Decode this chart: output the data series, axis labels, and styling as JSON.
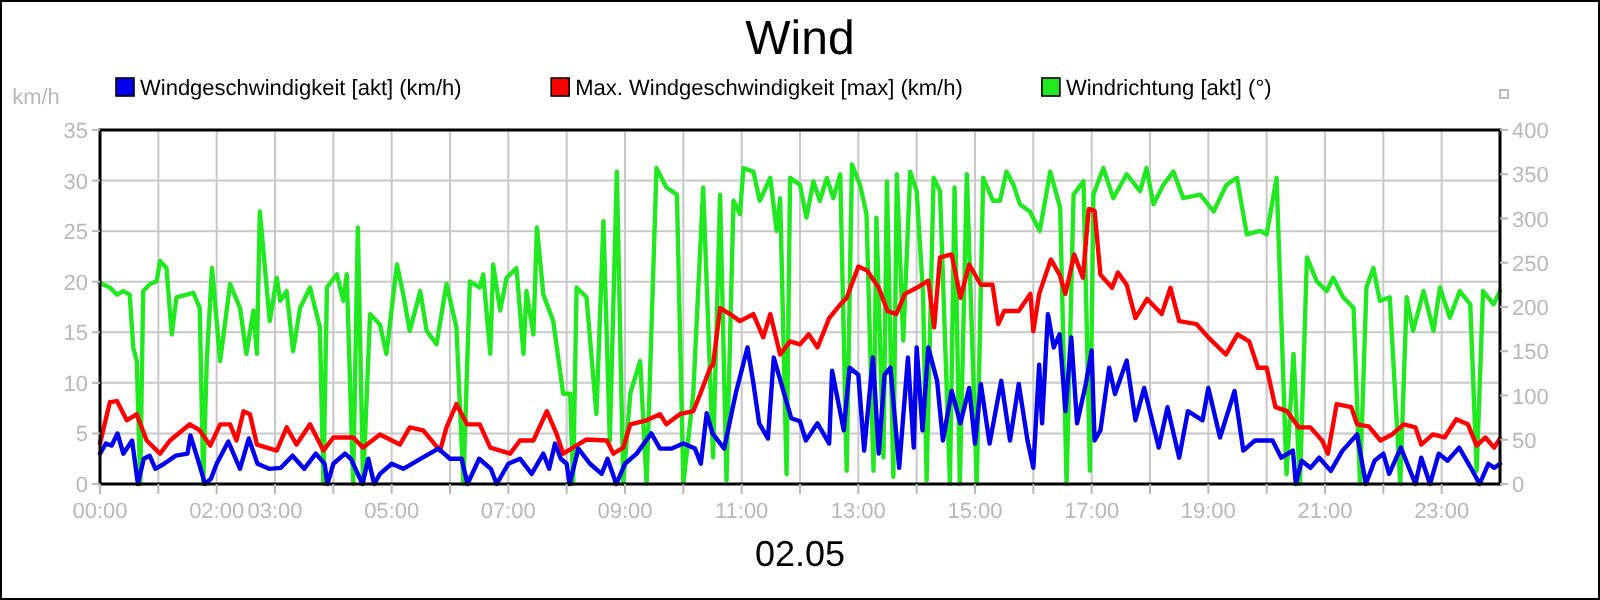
{
  "chart_data": {
    "type": "line",
    "title": "Wind",
    "xlabel": "02.05",
    "ylabel": "km/h",
    "xlim": [
      0,
      24
    ],
    "ylim": [
      0,
      35
    ],
    "yticks": [
      0,
      5,
      10,
      15,
      20,
      25,
      30,
      35
    ],
    "y2lim": [
      0,
      400
    ],
    "y2ticks": [
      0,
      50,
      100,
      150,
      200,
      250,
      300,
      350,
      400
    ],
    "xticks": [
      {
        "value": 0,
        "label": "00:00"
      },
      {
        "value": 1,
        "label": null
      },
      {
        "value": 2,
        "label": "02:00"
      },
      {
        "value": 3,
        "label": "03:00"
      },
      {
        "value": 4,
        "label": null
      },
      {
        "value": 5,
        "label": "05:00"
      },
      {
        "value": 6,
        "label": null
      },
      {
        "value": 7,
        "label": "07:00"
      },
      {
        "value": 8,
        "label": null
      },
      {
        "value": 9,
        "label": "09:00"
      },
      {
        "value": 10,
        "label": null
      },
      {
        "value": 11,
        "label": "11:00"
      },
      {
        "value": 12,
        "label": null
      },
      {
        "value": 13,
        "label": "13:00"
      },
      {
        "value": 14,
        "label": null
      },
      {
        "value": 15,
        "label": "15:00"
      },
      {
        "value": 16,
        "label": null
      },
      {
        "value": 17,
        "label": "17:00"
      },
      {
        "value": 18,
        "label": null
      },
      {
        "value": 19,
        "label": "19:00"
      },
      {
        "value": 20,
        "label": null
      },
      {
        "value": 21,
        "label": "21:00"
      },
      {
        "value": 22,
        "label": null
      },
      {
        "value": 23,
        "label": "23:00"
      }
    ],
    "grid": true,
    "legend": "top",
    "marker": "none",
    "line_style": "solid",
    "series": [
      {
        "name": "Windrichtung [akt] (°)",
        "color": "#22e822",
        "axis": "y2",
        "x": [
          0,
          0.17,
          0.29,
          0.4,
          0.51,
          0.57,
          0.63,
          0.69,
          0.74,
          0.86,
          0.97,
          1.03,
          1.14,
          1.23,
          1.31,
          1.6,
          1.71,
          1.77,
          1.83,
          1.92,
          2.06,
          2.23,
          2.4,
          2.51,
          2.63,
          2.69,
          2.74,
          2.91,
          3.03,
          3.09,
          3.2,
          3.31,
          3.43,
          3.6,
          3.77,
          3.83,
          3.89,
          4.06,
          4.17,
          4.23,
          4.34,
          4.42,
          4.51,
          4.63,
          4.8,
          4.91,
          5.09,
          5.2,
          5.31,
          5.49,
          5.6,
          5.77,
          5.94,
          6.11,
          6.23,
          6.34,
          6.51,
          6.57,
          6.69,
          6.74,
          6.86,
          6.97,
          7.14,
          7.26,
          7.31,
          7.43,
          7.49,
          7.6,
          7.77,
          7.94,
          8.06,
          8.11,
          8.17,
          8.34,
          8.51,
          8.63,
          8.74,
          8.86,
          8.97,
          9.09,
          9.26,
          9.37,
          9.54,
          9.71,
          9.89,
          10,
          10.17,
          10.34,
          10.51,
          10.63,
          10.74,
          10.86,
          10.97,
          11.03,
          11.2,
          11.31,
          11.49,
          11.6,
          11.66,
          11.77,
          11.83,
          12,
          12.11,
          12.23,
          12.34,
          12.46,
          12.57,
          12.69,
          12.8,
          12.89,
          13.03,
          13.14,
          13.26,
          13.31,
          13.43,
          13.49,
          13.6,
          13.66,
          13.77,
          13.89,
          14,
          14.11,
          14.17,
          14.29,
          14.4,
          14.57,
          14.65,
          14.74,
          14.86,
          15.03,
          15.14,
          15.31,
          15.43,
          15.54,
          15.66,
          15.77,
          15.94,
          16.11,
          16.29,
          16.46,
          16.57,
          16.69,
          16.86,
          16.97,
          17.03,
          17.2,
          17.37,
          17.6,
          17.83,
          17.94,
          18.06,
          18.23,
          18.4,
          18.57,
          18.86,
          19.09,
          19.31,
          19.49,
          19.66,
          19.89,
          20,
          20.17,
          20.34,
          20.46,
          20.57,
          20.69,
          20.86,
          21.03,
          21.14,
          21.31,
          21.49,
          21.6,
          21.71,
          21.83,
          21.94,
          22.11,
          22.29,
          22.4,
          22.51,
          22.69,
          22.86,
          22.97,
          23.14,
          23.31,
          23.49,
          23.6,
          23.71,
          23.89,
          24
        ],
        "values": [
          227,
          222,
          214,
          218,
          214,
          154,
          139,
          0,
          218,
          226,
          229,
          252,
          244,
          169,
          211,
          216,
          199,
          0,
          139,
          244,
          139,
          226,
          199,
          147,
          196,
          147,
          308,
          184,
          233,
          207,
          218,
          150,
          199,
          222,
          177,
          0,
          222,
          237,
          207,
          237,
          0,
          290,
          0,
          192,
          180,
          147,
          248,
          214,
          173,
          218,
          173,
          158,
          226,
          177,
          0,
          229,
          222,
          237,
          147,
          248,
          196,
          233,
          244,
          147,
          218,
          169,
          290,
          214,
          184,
          102,
          102,
          0,
          222,
          211,
          79,
          297,
          49,
          353,
          0,
          102,
          139,
          0,
          357,
          335,
          327,
          0,
          102,
          335,
          30,
          327,
          4,
          320,
          305,
          357,
          353,
          320,
          346,
          286,
          323,
          11,
          346,
          338,
          301,
          342,
          320,
          346,
          323,
          350,
          15,
          361,
          338,
          305,
          15,
          301,
          30,
          342,
          8,
          350,
          162,
          353,
          331,
          214,
          4,
          346,
          331,
          0,
          335,
          0,
          350,
          0,
          346,
          320,
          320,
          353,
          338,
          316,
          308,
          286,
          353,
          312,
          0,
          327,
          342,
          15,
          327,
          357,
          323,
          350,
          331,
          357,
          316,
          338,
          353,
          323,
          327,
          308,
          338,
          346,
          282,
          286,
          282,
          346,
          11,
          147,
          0,
          256,
          229,
          218,
          233,
          211,
          199,
          0,
          222,
          244,
          207,
          211,
          0,
          211,
          173,
          218,
          173,
          222,
          188,
          218,
          203,
          15,
          218,
          203,
          218
        ]
      },
      {
        "name": "Max. Windgeschwindigkeit [max] (km/h)",
        "color": "#ff0000",
        "x": [
          0,
          0.17,
          0.29,
          0.46,
          0.63,
          0.8,
          1.03,
          1.2,
          1.54,
          1.71,
          1.89,
          2.06,
          2.23,
          2.34,
          2.46,
          2.57,
          2.69,
          3.03,
          3.2,
          3.37,
          3.6,
          3.83,
          4,
          4.34,
          4.51,
          4.8,
          5.14,
          5.31,
          5.54,
          5.83,
          5.94,
          6.11,
          6.29,
          6.51,
          6.69,
          7.03,
          7.2,
          7.43,
          7.66,
          7.83,
          7.94,
          8.11,
          8.34,
          8.69,
          8.8,
          8.97,
          9.09,
          9.37,
          9.6,
          9.71,
          9.94,
          10.17,
          10.29,
          10.46,
          10.51,
          10.63,
          10.8,
          10.97,
          11.2,
          11.37,
          11.49,
          11.66,
          11.83,
          12,
          12.15,
          12.3,
          12.5,
          12.7,
          12.8,
          13,
          13.15,
          13.35,
          13.5,
          13.65,
          13.8,
          14,
          14.2,
          14.3,
          14.4,
          14.6,
          14.75,
          14.9,
          15.1,
          15.3,
          15.4,
          15.5,
          15.75,
          15.95,
          16,
          16.1,
          16.3,
          16.45,
          16.55,
          16.7,
          16.85,
          16.95,
          17.05,
          17.15,
          17.35,
          17.45,
          17.6,
          17.75,
          17.95,
          18.2,
          18.35,
          18.5,
          18.8,
          19,
          19.3,
          19.5,
          19.7,
          19.85,
          20,
          20.15,
          20.35,
          20.55,
          20.75,
          20.95,
          21.05,
          21.2,
          21.45,
          21.55,
          21.75,
          21.95,
          22.15,
          22.35,
          22.55,
          22.65,
          22.85,
          23.05,
          23.25,
          23.45,
          23.6,
          23.75,
          23.9,
          24
        ],
        "values": [
          4,
          8.1,
          8.2,
          6.3,
          6.9,
          4.3,
          3,
          4.3,
          5.9,
          5.3,
          3.8,
          5.9,
          5.9,
          4.3,
          7.2,
          6.9,
          3.9,
          3.3,
          5.6,
          3.9,
          5.9,
          3.3,
          4.6,
          4.6,
          3.6,
          4.9,
          3.9,
          5.6,
          5.3,
          3.3,
          5.6,
          7.9,
          5.9,
          5.9,
          3.6,
          3,
          4.3,
          4.3,
          7.2,
          4.9,
          3,
          3.6,
          4.4,
          4.3,
          3,
          3.6,
          5.9,
          6.3,
          6.9,
          5.9,
          6.9,
          7.2,
          8.9,
          11.5,
          11.8,
          17.4,
          16.8,
          16.1,
          16.8,
          14.5,
          16.8,
          12.8,
          14.1,
          13.8,
          14.8,
          13.5,
          16.4,
          17.8,
          18.4,
          21.5,
          21.1,
          19.4,
          17.1,
          16.8,
          18.8,
          19.4,
          20.1,
          15.5,
          22.4,
          22.7,
          18.4,
          21.7,
          19.7,
          19.7,
          15.8,
          17.1,
          17.1,
          18.8,
          15.1,
          18.8,
          22.2,
          20.7,
          18.8,
          22.7,
          20.4,
          27.2,
          27,
          20.7,
          19.4,
          20.9,
          19.7,
          16.4,
          18.3,
          16.8,
          19.4,
          16.1,
          15.8,
          14.5,
          12.8,
          14.8,
          14.1,
          11.5,
          11.5,
          7.6,
          7.2,
          5.6,
          5.6,
          4.3,
          3,
          7.9,
          7.6,
          5.9,
          5.7,
          4.3,
          4.9,
          5.9,
          5.6,
          3.9,
          4.9,
          4.6,
          6.4,
          5.9,
          3.8,
          4.6,
          3.6,
          4.5
        ]
      },
      {
        "name": "Windgeschwindigkeit [akt] (km/h)",
        "color": "#0000ee",
        "x": [
          0,
          0.1,
          0.2,
          0.3,
          0.4,
          0.55,
          0.65,
          0.75,
          0.85,
          0.95,
          1.1,
          1.3,
          1.5,
          1.55,
          1.7,
          1.8,
          1.9,
          2,
          2.2,
          2.4,
          2.55,
          2.7,
          2.9,
          3.1,
          3.3,
          3.5,
          3.7,
          3.85,
          3.9,
          4,
          4.2,
          4.3,
          4.5,
          4.6,
          4.7,
          4.8,
          5,
          5.2,
          5.5,
          5.8,
          6,
          6.2,
          6.3,
          6.5,
          6.7,
          6.8,
          7,
          7.2,
          7.4,
          7.6,
          7.7,
          7.8,
          7.9,
          8,
          8.05,
          8.2,
          8.4,
          8.6,
          8.7,
          8.85,
          9,
          9.2,
          9.45,
          9.6,
          9.8,
          10,
          10.2,
          10.3,
          10.4,
          10.5,
          10.7,
          10.9,
          11.1,
          11.2,
          11.3,
          11.45,
          11.55,
          11.7,
          11.85,
          12,
          12.1,
          12.3,
          12.5,
          12.55,
          12.75,
          12.85,
          13,
          13.1,
          13.25,
          13.35,
          13.45,
          13.55,
          13.7,
          13.85,
          13.95,
          14,
          14.1,
          14.2,
          14.35,
          14.45,
          14.6,
          14.75,
          14.9,
          15,
          15.1,
          15.25,
          15.45,
          15.6,
          15.75,
          15.9,
          16,
          16.1,
          16.15,
          16.25,
          16.35,
          16.45,
          16.55,
          16.65,
          16.75,
          16.9,
          17,
          17.05,
          17.15,
          17.3,
          17.4,
          17.6,
          17.75,
          17.9,
          18.15,
          18.3,
          18.5,
          18.65,
          18.9,
          19,
          19.2,
          19.45,
          19.6,
          19.8,
          20.1,
          20.25,
          20.45,
          20.5,
          20.6,
          20.75,
          20.9,
          21.1,
          21.3,
          21.55,
          21.7,
          21.85,
          22,
          22.1,
          22.3,
          22.55,
          22.65,
          22.8,
          22.95,
          23.1,
          23.3,
          23.5,
          23.65,
          23.8,
          23.9,
          24
        ],
        "values": [
          3,
          4,
          3.8,
          5,
          3,
          4.3,
          0,
          2.5,
          2.8,
          1.5,
          2,
          2.8,
          3,
          4.8,
          2,
          0,
          0.5,
          2,
          4.2,
          1.5,
          4.5,
          2,
          1.5,
          1.6,
          2.8,
          1.5,
          3,
          2,
          0,
          2,
          3,
          2.5,
          0,
          2.5,
          0,
          1,
          2,
          1.5,
          2.5,
          3.5,
          2.5,
          2.5,
          0,
          2.5,
          1.5,
          0,
          2,
          2.5,
          1,
          3,
          1.5,
          4,
          2.5,
          2,
          0,
          3.5,
          2,
          1,
          2.5,
          0,
          2,
          3,
          5,
          3.5,
          3.5,
          4,
          3.5,
          2,
          7,
          5,
          3.5,
          9,
          13.5,
          10,
          6,
          4.5,
          12.5,
          9.5,
          6.5,
          6.2,
          4.3,
          6,
          4,
          11.2,
          5.3,
          11.5,
          10.8,
          3.3,
          12.5,
          3,
          10.8,
          11.5,
          1.6,
          12.5,
          3.6,
          13.5,
          5.3,
          13.5,
          10.2,
          4.3,
          9.2,
          6,
          9.5,
          4,
          9.9,
          4,
          10.2,
          4.3,
          9.9,
          4.3,
          1.6,
          11.8,
          6,
          16.8,
          13.5,
          14.8,
          7.2,
          14.5,
          6,
          9.9,
          13.2,
          4.3,
          5.3,
          11.5,
          8.9,
          12.2,
          6.3,
          9.5,
          3.6,
          7.6,
          2.6,
          7.2,
          6.3,
          9.5,
          4.6,
          9.2,
          3.3,
          4.3,
          4.3,
          2.6,
          3.3,
          0,
          2.3,
          1.6,
          2.6,
          1.3,
          3.3,
          4.9,
          0,
          2.3,
          3,
          1,
          3.6,
          0,
          2.6,
          0,
          3,
          2.3,
          3.6,
          1.6,
          0,
          2,
          1.6,
          2
        ]
      }
    ]
  }
}
